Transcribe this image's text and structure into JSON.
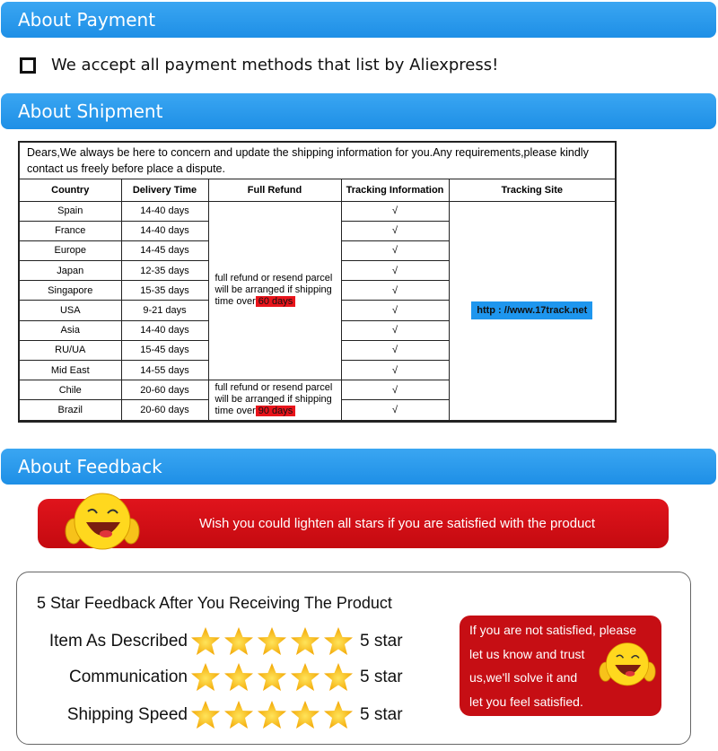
{
  "payment": {
    "header": "About Payment",
    "text": "We accept all payment methods that list by Aliexpress!"
  },
  "shipment": {
    "header": "About Shipment",
    "intro": "Dears,We always be here to concern and update the shipping information for you.Any requirements,please kindly contact us freely before place a dispute.",
    "columns": [
      "Country",
      "Delivery Time",
      "Full Refund",
      "Tracking Information",
      "Tracking Site"
    ],
    "rows": [
      {
        "country": "Spain",
        "time": "14-40 days",
        "tracking": "√"
      },
      {
        "country": "France",
        "time": "14-40 days",
        "tracking": "√"
      },
      {
        "country": "Europe",
        "time": "14-45 days",
        "tracking": "√"
      },
      {
        "country": "Japan",
        "time": "12-35 days",
        "tracking": "√"
      },
      {
        "country": "Singapore",
        "time": "15-35 days",
        "tracking": "√"
      },
      {
        "country": "USA",
        "time": "9-21 days",
        "tracking": "√"
      },
      {
        "country": "Asia",
        "time": "14-40 days",
        "tracking": "√"
      },
      {
        "country": "RU/UA",
        "time": "15-45 days",
        "tracking": "√"
      },
      {
        "country": "Mid East",
        "time": "14-55 days",
        "tracking": "√"
      },
      {
        "country": "Chile",
        "time": "20-60 days",
        "tracking": "√"
      },
      {
        "country": "Brazil",
        "time": "20-60 days",
        "tracking": "√"
      }
    ],
    "refund_1": {
      "text": "full refund or resend parcel will be arranged if shipping time over",
      "days": "60 days"
    },
    "refund_2": {
      "text": "full refund or resend parcel will be arranged if shipping time over",
      "days": "90 days"
    },
    "tracking_site": "http : //www.17track.net"
  },
  "feedback": {
    "header": "About Feedback",
    "banner": "Wish you could lighten all stars if you are satisfied with the product",
    "title": "5 Star Feedback After You Receiving The Product",
    "ratings": [
      {
        "label": "Item As Described",
        "stars": 5,
        "value": "5 star"
      },
      {
        "label": "Communication",
        "stars": 5,
        "value": "5 star"
      },
      {
        "label": "Shipping Speed",
        "stars": 5,
        "value": "5 star"
      }
    ],
    "note_lines": [
      "If you are not satisfied, please",
      "let us know and trust",
      "us,we'll solve it and",
      "let you feel satisfied."
    ]
  },
  "colors": {
    "header_blue": "#1e8fe6",
    "banner_red": "#d0121a",
    "highlight_red": "#e8141b",
    "star": "#f7b500"
  }
}
